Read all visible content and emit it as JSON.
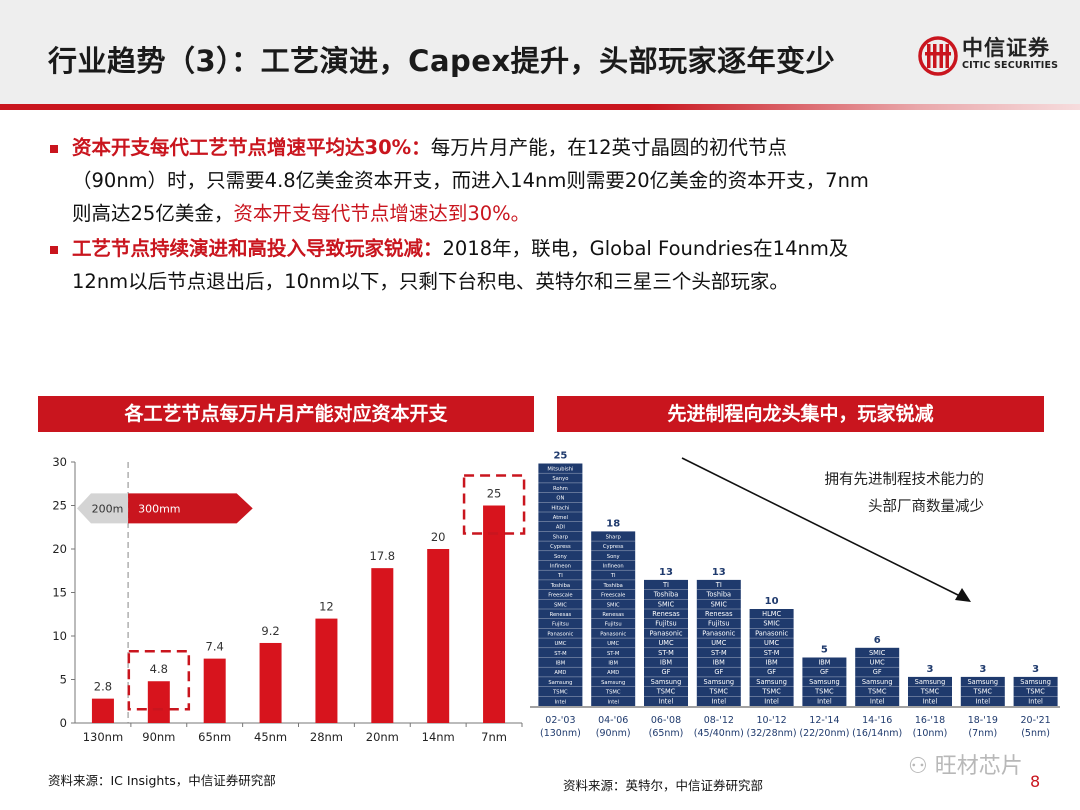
{
  "header": {
    "title": "行业趋势（3）：工艺演进，Capex提升，头部玩家逐年变少",
    "logo_cn": "中信证券",
    "logo_en": "CITIC SECURITIES"
  },
  "bullets": [
    {
      "l1_red": "资本开支每代工艺节点增速平均达30%：",
      "l1_text": "每万片月产能，在12英寸晶圆的初代节点",
      "l2_text": "（90nm）时，只需要4.8亿美金资本开支，而进入14nm则需要20亿美金的资本开支，7nm",
      "l3_text": "则高达25亿美金，",
      "l3_red": "资本开支每代节点增速达到30%。"
    },
    {
      "l1_red": "工艺节点持续演进和高投入导致玩家锐减：",
      "l1_text": "2018年，联电，Global Foundries在14nm及",
      "l2_text": "12nm以后节点退出后，10nm以下，只剩下台积电、英特尔和三星三个头部玩家。"
    }
  ],
  "chart_data": [
    {
      "type": "bar",
      "title": "各工艺节点每万片月产能对应资本开支",
      "categories": [
        "130nm",
        "90nm",
        "65nm",
        "45nm",
        "28nm",
        "20nm",
        "14nm",
        "7nm"
      ],
      "values": [
        2.8,
        4.8,
        7.4,
        9.2,
        12,
        17.8,
        20,
        25
      ],
      "value_labels": [
        "2.8",
        "4.8",
        "7.4",
        "9.2",
        "12",
        "17.8",
        "20",
        "25"
      ],
      "ylim": [
        0,
        30
      ],
      "yticks": [
        "0",
        "5",
        "10",
        "15",
        "20",
        "25",
        "30"
      ],
      "wafer_labels": [
        "200m",
        "300mm"
      ],
      "highlighted": [
        "90nm",
        "7nm"
      ],
      "bar_color": "#d7141d",
      "source": "资料来源：IC Insights，中信证券研究部"
    },
    {
      "type": "bar",
      "title": "先进制程向龙头集中，玩家锐减",
      "categories": [
        "02-'03\n(130nm)",
        "04-'06\n(90nm)",
        "06-'08\n(65nm)",
        "08-'12\n(45/40nm)",
        "10-'12\n(32/28nm)",
        "12-'14\n(22/20nm)",
        "14-'16\n(16/14nm)",
        "16-'18\n(10nm)",
        "18-'19\n(7nm)",
        "20-'21\n(5nm)"
      ],
      "values": [
        25,
        18,
        13,
        13,
        10,
        5,
        6,
        3,
        3,
        3
      ],
      "players": [
        [
          "Mitsubishi",
          "Sanyo",
          "Rohm",
          "ON",
          "Hitachi",
          "Atmel",
          "ADI",
          "Sharp",
          "Cypress",
          "Sony",
          "Infineon",
          "TI",
          "Toshiba",
          "Freescale",
          "SMIC",
          "Renesas",
          "Fujitsu",
          "Panasonic",
          "UMC",
          "ST-M",
          "IBM",
          "AMD",
          "Samsung",
          "TSMC",
          "Intel"
        ],
        [
          "Sharp",
          "Cypress",
          "Sony",
          "Infineon",
          "TI",
          "Toshiba",
          "Freescale",
          "SMIC",
          "Renesas",
          "Fujitsu",
          "Panasonic",
          "UMC",
          "ST-M",
          "IBM",
          "AMD",
          "Samsung",
          "TSMC",
          "Intel"
        ],
        [
          "TI",
          "Toshiba",
          "SMIC",
          "Renesas",
          "Fujitsu",
          "Panasonic",
          "UMC",
          "ST-M",
          "IBM",
          "GF",
          "Samsung",
          "TSMC",
          "Intel"
        ],
        [
          "TI",
          "Toshiba",
          "SMIC",
          "Renesas",
          "Fujitsu",
          "Panasonic",
          "UMC",
          "ST-M",
          "IBM",
          "GF",
          "Samsung",
          "TSMC",
          "Intel"
        ],
        [
          "HLMC",
          "SMIC",
          "Panasonic",
          "UMC",
          "ST-M",
          "IBM",
          "GF",
          "Samsung",
          "TSMC",
          "Intel"
        ],
        [
          "IBM",
          "GF",
          "Samsung",
          "TSMC",
          "Intel"
        ],
        [
          "SMIC",
          "UMC",
          "GF",
          "Samsung",
          "TSMC",
          "Intel"
        ],
        [
          "Samsung",
          "TSMC",
          "Intel"
        ],
        [
          "Samsung",
          "TSMC",
          "Intel"
        ],
        [
          "Samsung",
          "TSMC",
          "Intel"
        ]
      ],
      "annotation": [
        "拥有先进制程技术能力的",
        "头部厂商数量减少"
      ],
      "bar_color": "#1f3a6d",
      "source": "资料来源：英特尔，中信证券研究部"
    }
  ],
  "page_number": "8",
  "watermark": "旺材芯片"
}
